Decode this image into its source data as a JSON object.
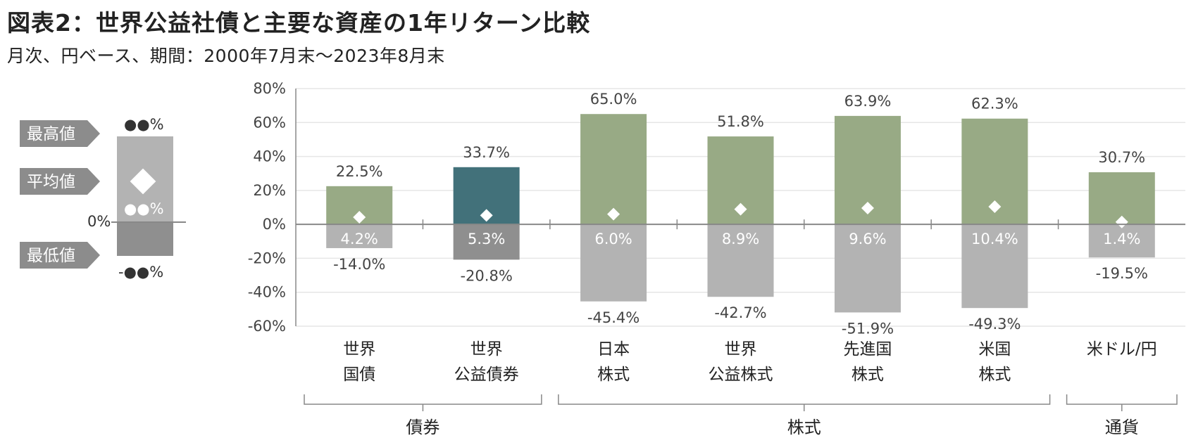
{
  "header": {
    "title": "図表2：世界公益社債と主要な資産の1年リターン比較",
    "subtitle": "月次、円ベース、期間：2000年7月末～2023年8月末"
  },
  "legend": {
    "max_label": "最高値",
    "avg_label": "平均値",
    "min_label": "最低値",
    "max_value": "●●%",
    "avg_value": "●●%",
    "min_value": "-●●%",
    "zero_label": "0%"
  },
  "chart_data": {
    "type": "bar",
    "ylim": [
      -60,
      80
    ],
    "yticks": [
      80,
      60,
      40,
      20,
      0,
      -20,
      -40,
      -60
    ],
    "ytick_labels": [
      "80%",
      "60%",
      "40%",
      "20%",
      "0%",
      "-20%",
      "-40%",
      "-60%"
    ],
    "grid": true,
    "categories": [
      {
        "label": [
          "世界",
          "国債"
        ],
        "max": 22.5,
        "min": -14.0,
        "avg": 4.2,
        "max_label": "22.5%",
        "min_label": "-14.0%",
        "avg_label": "4.2%",
        "highlight": false
      },
      {
        "label": [
          "世界",
          "公益債券"
        ],
        "max": 33.7,
        "min": -20.8,
        "avg": 5.3,
        "max_label": "33.7%",
        "min_label": "-20.8%",
        "avg_label": "5.3%",
        "highlight": true
      },
      {
        "label": [
          "日本",
          "株式"
        ],
        "max": 65.0,
        "min": -45.4,
        "avg": 6.0,
        "max_label": "65.0%",
        "min_label": "-45.4%",
        "avg_label": "6.0%",
        "highlight": false
      },
      {
        "label": [
          "世界",
          "公益株式"
        ],
        "max": 51.8,
        "min": -42.7,
        "avg": 8.9,
        "max_label": "51.8%",
        "min_label": "-42.7%",
        "avg_label": "8.9%",
        "highlight": false
      },
      {
        "label": [
          "先進国",
          "株式"
        ],
        "max": 63.9,
        "min": -51.9,
        "avg": 9.6,
        "max_label": "63.9%",
        "min_label": "-51.9%",
        "avg_label": "9.6%",
        "highlight": false
      },
      {
        "label": [
          "米国",
          "株式"
        ],
        "max": 62.3,
        "min": -49.3,
        "avg": 10.4,
        "max_label": "62.3%",
        "min_label": "-49.3%",
        "avg_label": "10.4%",
        "highlight": false
      },
      {
        "label": [
          "米ドル/円"
        ],
        "max": 30.7,
        "min": -19.5,
        "avg": 1.4,
        "max_label": "30.7%",
        "min_label": "-19.5%",
        "avg_label": "1.4%",
        "highlight": false
      }
    ],
    "groups": [
      {
        "label": "債券",
        "from": 0,
        "to": 1
      },
      {
        "label": "株式",
        "from": 2,
        "to": 5
      },
      {
        "label": "通貨",
        "from": 6,
        "to": 6
      }
    ],
    "colors": {
      "positive": "#98aa85",
      "highlight": "#42717a",
      "negative": "#b3b3b3",
      "negative_highlight": "#8f8f8f",
      "avg_marker": "#ffffff",
      "grid": "#e6e6e6",
      "axis": "#888888"
    }
  }
}
